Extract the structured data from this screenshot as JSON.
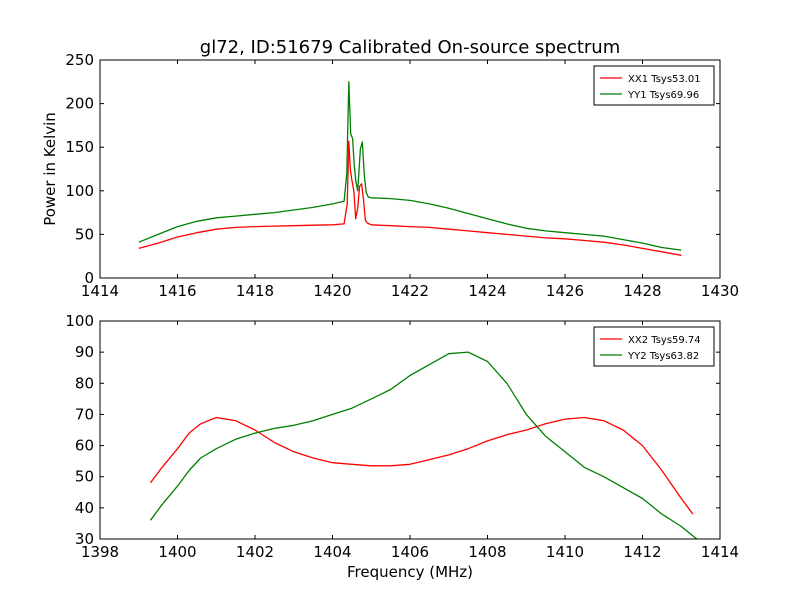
{
  "title": "gl72, ID:51679 Calibrated On-source spectrum",
  "colors": {
    "xx": "#ff0000",
    "yy": "#008000"
  },
  "chart_data": [
    {
      "type": "line",
      "title": "gl72, ID:51679 Calibrated On-source spectrum",
      "xlabel": "",
      "ylabel": "Power in Kelvin",
      "xlim": [
        1414,
        1430
      ],
      "ylim": [
        0,
        250
      ],
      "xticks": [
        1414,
        1416,
        1418,
        1420,
        1422,
        1424,
        1426,
        1428,
        1430
      ],
      "yticks": [
        0,
        50,
        100,
        150,
        200,
        250
      ],
      "legend_position": "top-right",
      "grid": false,
      "series": [
        {
          "name": "XX1 Tsys53.01",
          "color": "#ff0000",
          "x": [
            1415.0,
            1415.5,
            1416.0,
            1416.5,
            1417.0,
            1417.5,
            1418.0,
            1418.5,
            1419.0,
            1419.5,
            1420.0,
            1420.3,
            1420.38,
            1420.42,
            1420.46,
            1420.5,
            1420.55,
            1420.6,
            1420.65,
            1420.7,
            1420.75,
            1420.8,
            1420.85,
            1420.9,
            1421.0,
            1421.5,
            1422.0,
            1422.5,
            1423.0,
            1423.5,
            1424.0,
            1424.5,
            1425.0,
            1425.5,
            1426.0,
            1426.5,
            1427.0,
            1427.5,
            1428.0,
            1428.5,
            1429.0
          ],
          "y": [
            34,
            40,
            47,
            52,
            56,
            58,
            59,
            59.5,
            60,
            60.5,
            61,
            62,
            85,
            157,
            125,
            112,
            100,
            68,
            80,
            105,
            108,
            90,
            66,
            63,
            61,
            60,
            59,
            58,
            56,
            54,
            52,
            50,
            48,
            46,
            45,
            43,
            41,
            38,
            34,
            30,
            26
          ]
        },
        {
          "name": "YY1 Tsys69.96",
          "color": "#008000",
          "x": [
            1415.0,
            1415.5,
            1416.0,
            1416.5,
            1417.0,
            1417.5,
            1418.0,
            1418.5,
            1419.0,
            1419.5,
            1420.0,
            1420.3,
            1420.37,
            1420.42,
            1420.47,
            1420.52,
            1420.56,
            1420.6,
            1420.65,
            1420.72,
            1420.77,
            1420.82,
            1420.87,
            1420.92,
            1421.0,
            1421.5,
            1422.0,
            1422.5,
            1423.0,
            1423.5,
            1424.0,
            1424.5,
            1425.0,
            1425.5,
            1426.0,
            1426.5,
            1427.0,
            1427.5,
            1428.0,
            1428.5,
            1429.0
          ],
          "y": [
            41,
            50,
            59,
            65,
            69,
            71,
            73,
            75,
            78,
            81,
            85,
            88,
            120,
            225,
            165,
            160,
            130,
            112,
            100,
            148,
            156,
            118,
            98,
            93,
            92,
            91,
            89,
            85,
            80,
            74,
            68,
            62,
            57,
            54,
            52,
            50,
            48,
            44,
            40,
            35,
            32
          ]
        }
      ]
    },
    {
      "type": "line",
      "title": "",
      "xlabel": "Frequency (MHz)",
      "ylabel": "",
      "xlim": [
        1398,
        1414
      ],
      "ylim": [
        30,
        100
      ],
      "xticks": [
        1398,
        1400,
        1402,
        1404,
        1406,
        1408,
        1410,
        1412,
        1414
      ],
      "yticks": [
        30,
        40,
        50,
        60,
        70,
        80,
        90,
        100
      ],
      "legend_position": "top-right",
      "grid": false,
      "series": [
        {
          "name": "XX2 Tsys59.74",
          "color": "#ff0000",
          "x": [
            1399.3,
            1399.6,
            1400.0,
            1400.3,
            1400.6,
            1401.0,
            1401.5,
            1402.0,
            1402.5,
            1403.0,
            1403.5,
            1404.0,
            1404.5,
            1405.0,
            1405.5,
            1406.0,
            1406.5,
            1407.0,
            1407.5,
            1408.0,
            1408.5,
            1409.0,
            1409.5,
            1410.0,
            1410.5,
            1411.0,
            1411.5,
            1412.0,
            1412.5,
            1413.0,
            1413.3
          ],
          "y": [
            48,
            53,
            59,
            64,
            67,
            69,
            68,
            65,
            61,
            58,
            56,
            54.5,
            54,
            53.5,
            53.5,
            54,
            55.5,
            57,
            59,
            61.5,
            63.5,
            65,
            67,
            68.5,
            69,
            68,
            65,
            60,
            52,
            43,
            38
          ]
        },
        {
          "name": "YY2 Tsys63.82",
          "color": "#008000",
          "x": [
            1399.3,
            1399.6,
            1400.0,
            1400.3,
            1400.6,
            1401.0,
            1401.5,
            1402.0,
            1402.5,
            1403.0,
            1403.5,
            1404.0,
            1404.5,
            1405.0,
            1405.5,
            1406.0,
            1406.5,
            1407.0,
            1407.5,
            1408.0,
            1408.5,
            1409.0,
            1409.5,
            1410.0,
            1410.5,
            1411.0,
            1411.5,
            1412.0,
            1412.5,
            1413.0,
            1413.4
          ],
          "y": [
            36,
            41,
            47,
            52,
            56,
            59,
            62,
            64,
            65.5,
            66.5,
            68,
            70,
            72,
            75,
            78,
            82.5,
            86,
            89.5,
            90,
            87,
            80,
            70,
            63,
            58,
            53,
            50,
            46.5,
            43,
            38,
            34,
            30
          ]
        }
      ]
    }
  ]
}
